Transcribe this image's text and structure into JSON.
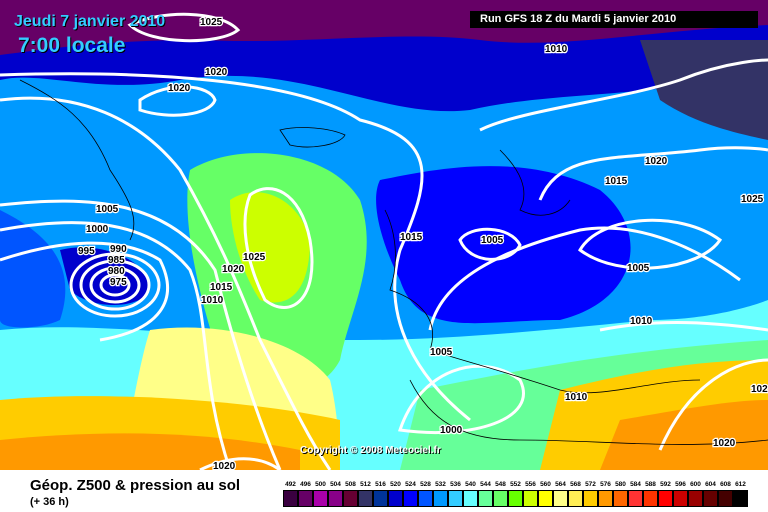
{
  "header": {
    "date": "Jeudi 7 janvier 2010",
    "time": "7:00 locale",
    "run": "Run GFS 18 Z du Mardi 5 janvier 2010"
  },
  "copyright": "Copyright © 2008 Meteociel.fr",
  "footer": {
    "title": "Géop. Z500 & pression au sol",
    "subtitle": "(+ 36 h)"
  },
  "legend": [
    {
      "label": "492",
      "color": "#3a0040"
    },
    {
      "label": "496",
      "color": "#660066"
    },
    {
      "label": "500",
      "color": "#aa00aa"
    },
    {
      "label": "504",
      "color": "#880088"
    },
    {
      "label": "508",
      "color": "#660033"
    },
    {
      "label": "512",
      "color": "#333366"
    },
    {
      "label": "516",
      "color": "#003399"
    },
    {
      "label": "520",
      "color": "#0000cc"
    },
    {
      "label": "524",
      "color": "#0000ff"
    },
    {
      "label": "528",
      "color": "#0055ff"
    },
    {
      "label": "532",
      "color": "#0099ff"
    },
    {
      "label": "536",
      "color": "#33ccff"
    },
    {
      "label": "540",
      "color": "#66ffff"
    },
    {
      "label": "544",
      "color": "#66ff99"
    },
    {
      "label": "548",
      "color": "#66ff66"
    },
    {
      "label": "552",
      "color": "#66ff00"
    },
    {
      "label": "556",
      "color": "#ccff00"
    },
    {
      "label": "560",
      "color": "#ffff00"
    },
    {
      "label": "564",
      "color": "#ffff88"
    },
    {
      "label": "568",
      "color": "#ffee55"
    },
    {
      "label": "572",
      "color": "#ffcc00"
    },
    {
      "label": "576",
      "color": "#ff9900"
    },
    {
      "label": "580",
      "color": "#ff6600"
    },
    {
      "label": "584",
      "color": "#ff3333"
    },
    {
      "label": "588",
      "color": "#ff3300"
    },
    {
      "label": "592",
      "color": "#ff0000"
    },
    {
      "label": "596",
      "color": "#cc0000"
    },
    {
      "label": "600",
      "color": "#990000"
    },
    {
      "label": "604",
      "color": "#660000"
    },
    {
      "label": "608",
      "color": "#440000"
    },
    {
      "label": "612",
      "color": "#000000"
    }
  ],
  "isobar_labels": [
    "1025",
    "1020",
    "1020",
    "1010",
    "1020",
    "1015",
    "1025",
    "1005",
    "1000",
    "995",
    "990",
    "985",
    "980",
    "975",
    "1015",
    "1005",
    "1025",
    "1020",
    "1015",
    "1010",
    "1005",
    "1010",
    "1005",
    "1010",
    "1000",
    "1020",
    "1020",
    "102"
  ]
}
